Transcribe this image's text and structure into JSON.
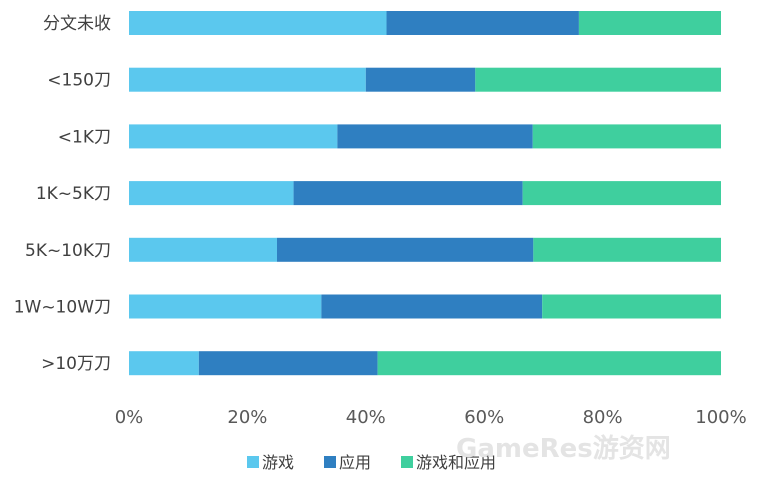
{
  "chart_data": {
    "type": "bar",
    "orientation": "horizontal",
    "stacked": "percent",
    "categories": [
      "分文未收",
      "<150刀",
      "<1K刀",
      "1K~5K刀",
      "5K~10K刀",
      "1W~10W刀",
      ">10万刀"
    ],
    "series": [
      {
        "name": "游戏",
        "color": "#5bc8ee",
        "values": [
          43.5,
          40,
          35.2,
          27.8,
          25,
          32.5,
          11.8
        ]
      },
      {
        "name": "应用",
        "color": "#2f7fc1",
        "values": [
          32.5,
          18.5,
          33,
          38.7,
          43.3,
          37.3,
          30.2
        ]
      },
      {
        "name": "游戏和应用",
        "color": "#3fcf9e",
        "values": [
          24,
          41.5,
          31.8,
          33.5,
          31.7,
          30.2,
          58
        ]
      }
    ],
    "xlim": [
      0,
      100
    ],
    "xticks": [
      "0%",
      "20%",
      "40%",
      "60%",
      "80%",
      "100%"
    ],
    "grid": false,
    "legend": "bottom",
    "watermark": "GameRes游资网"
  }
}
